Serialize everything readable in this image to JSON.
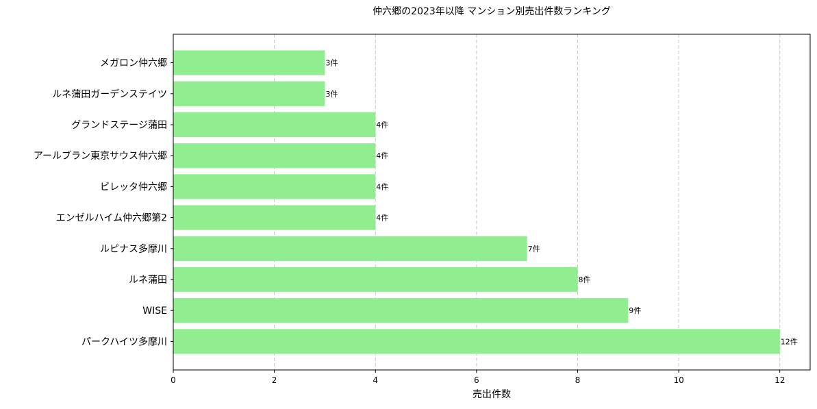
{
  "chart_data": {
    "type": "bar",
    "orientation": "horizontal",
    "title": "仲六郷の2023年以降 マンション別売出件数ランキング",
    "xlabel": "売出件数",
    "ylabel": "",
    "categories": [
      "パークハイツ多摩川",
      "WISE",
      "ルネ蒲田",
      "ルピナス多摩川",
      "エンゼルハイム仲六郷第2",
      "ビレッタ仲六郷",
      "アールブラン東京サウス仲六郷",
      "グランドステージ蒲田",
      "ルネ蒲田ガーデンステイツ",
      "メガロン仲六郷"
    ],
    "values": [
      12,
      9,
      8,
      7,
      4,
      4,
      4,
      4,
      3,
      3
    ],
    "data_labels": [
      "12件",
      "9件",
      "8件",
      "7件",
      "4件",
      "4件",
      "4件",
      "4件",
      "3件",
      "3件"
    ],
    "xlim": [
      0,
      12.6
    ],
    "xticks": [
      0,
      2,
      4,
      6,
      8,
      10,
      12
    ],
    "xtick_labels": [
      "0",
      "2",
      "4",
      "6",
      "8",
      "10",
      "12"
    ],
    "grid": "x-dashed",
    "bar_color": "#90ee90"
  }
}
